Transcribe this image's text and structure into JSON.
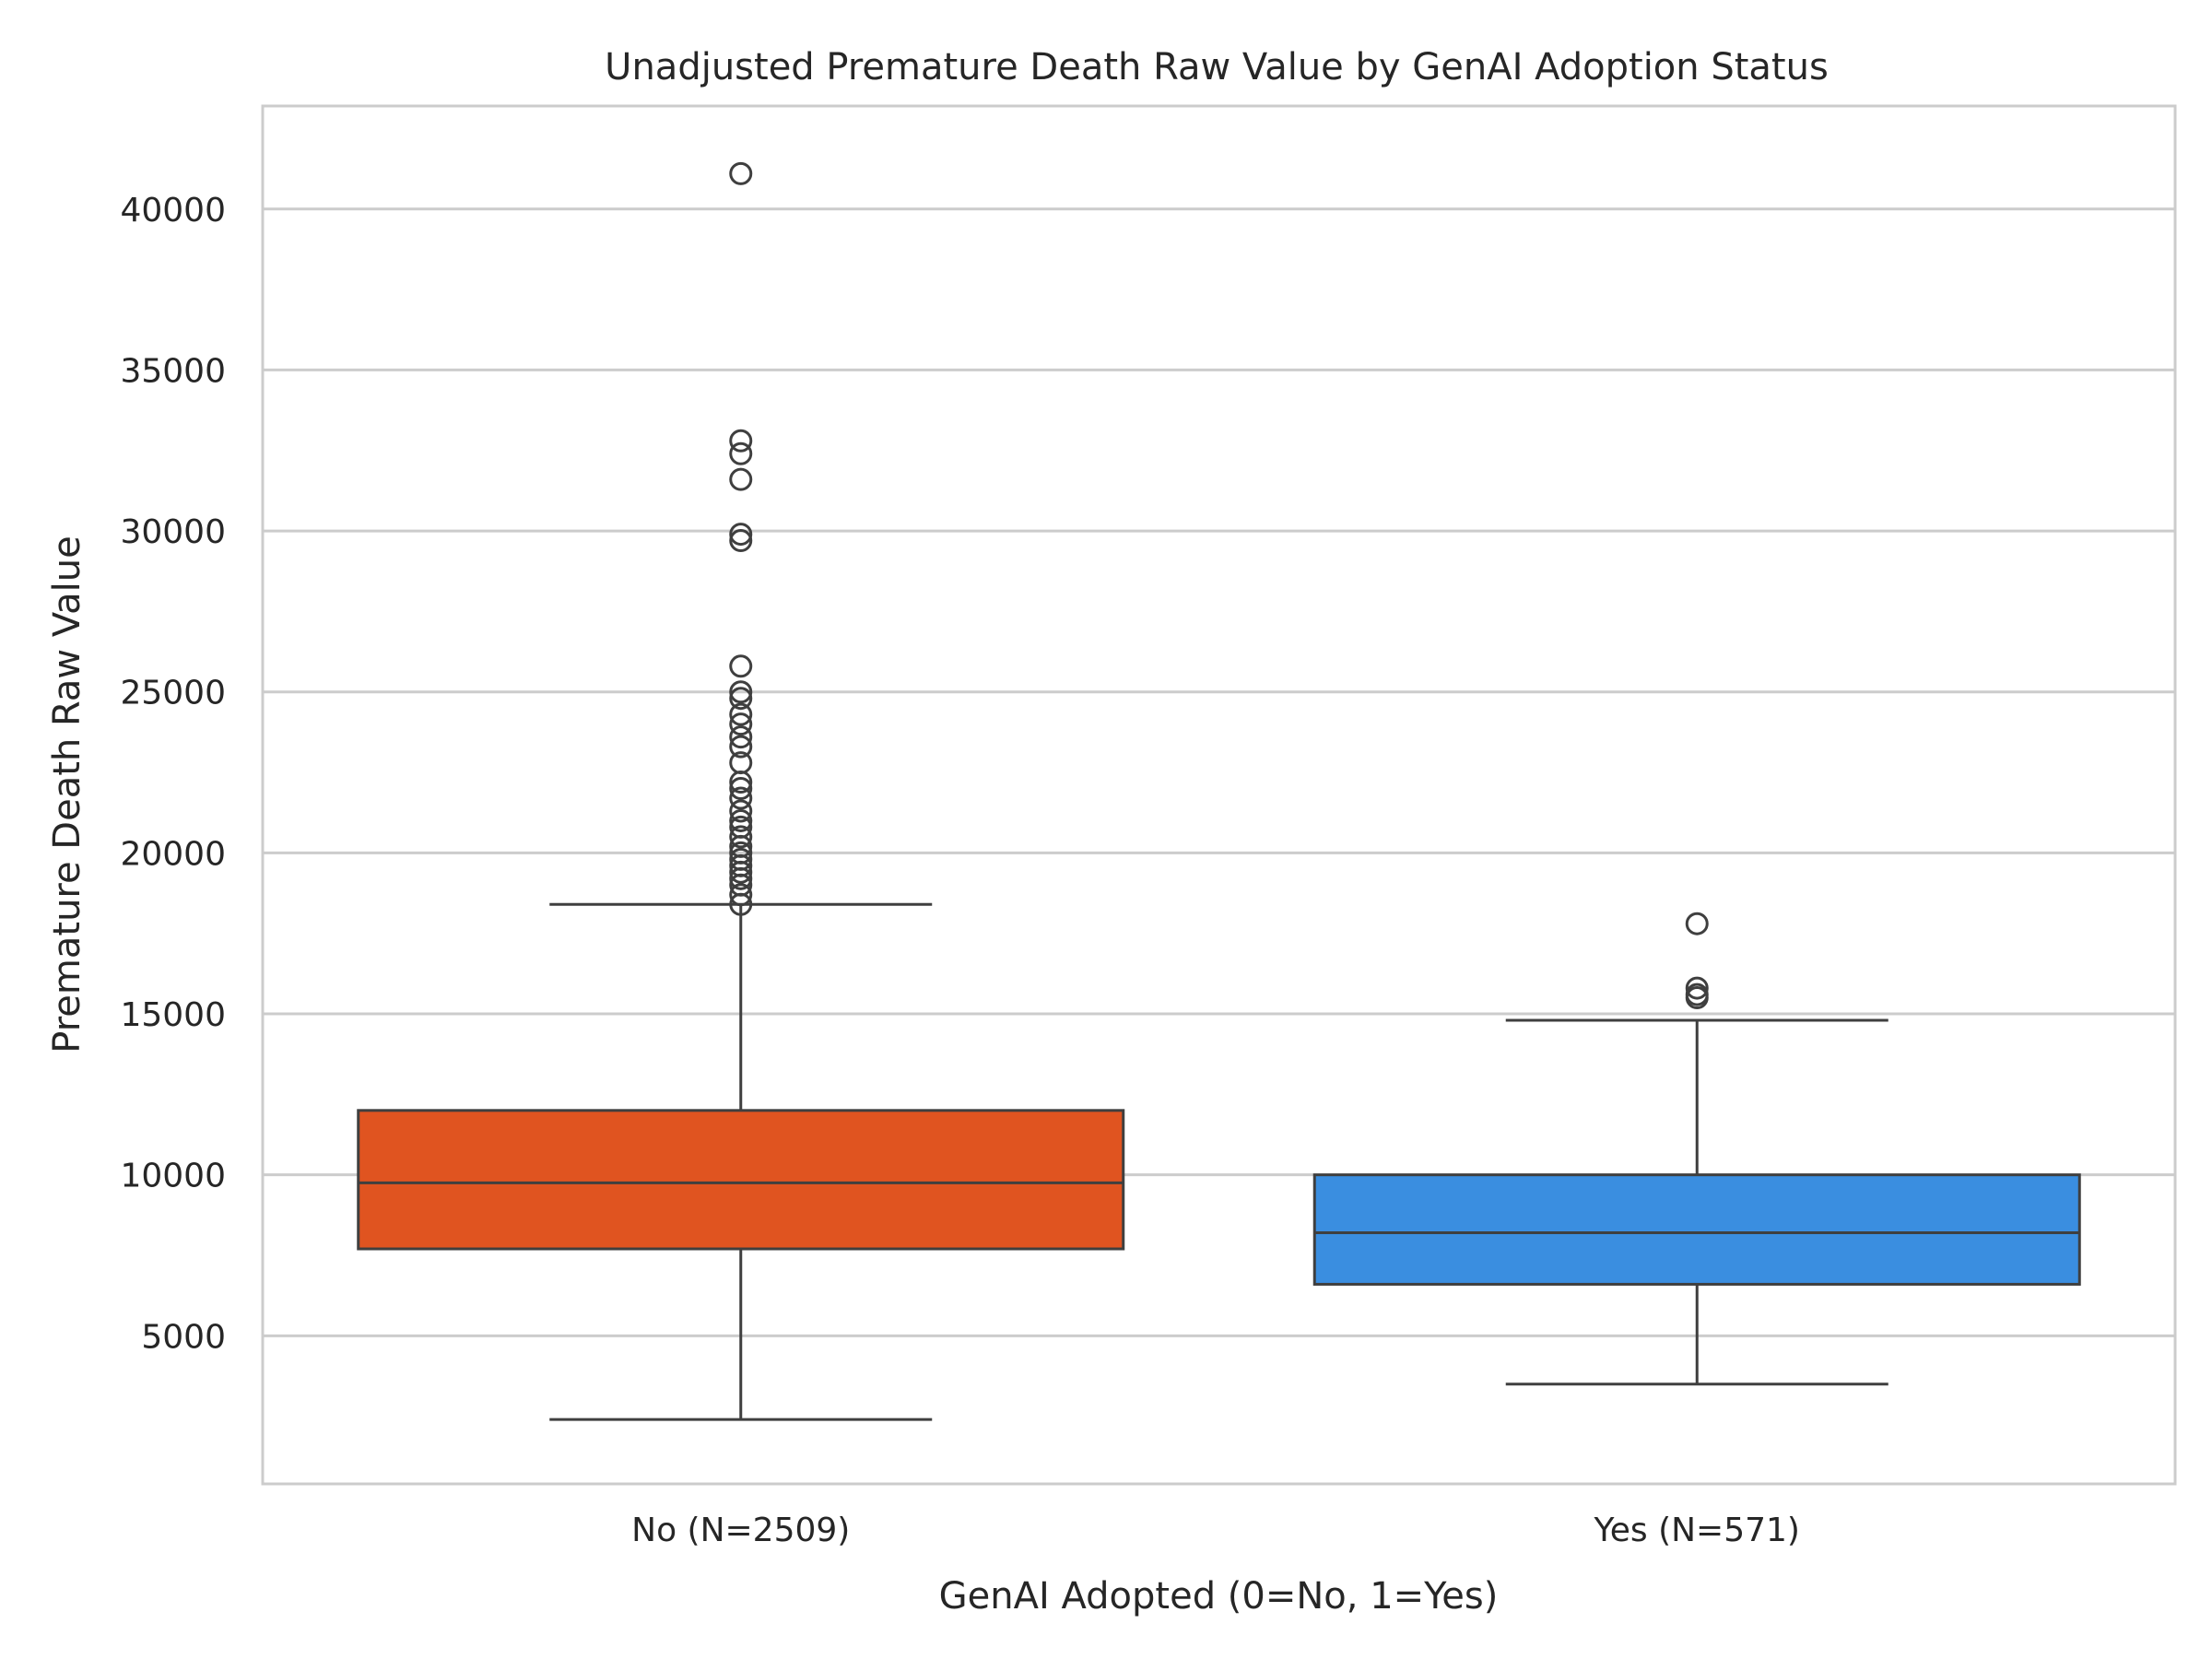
{
  "chart_data": {
    "type": "box",
    "title": "Unadjusted Premature Death Raw Value by GenAI Adoption Status",
    "xlabel": "GenAI Adopted (0=No, 1=Yes)",
    "ylabel": "Premature Death Raw Value",
    "ylim": [
      400,
      43200
    ],
    "yticks": [
      5000,
      10000,
      15000,
      20000,
      25000,
      30000,
      35000,
      40000
    ],
    "grid": true,
    "categories": [
      "No (N=2509)",
      "Yes (N=571)"
    ],
    "boxes": [
      {
        "category": "No (N=2509)",
        "color": "#e05420",
        "whisker_low": 2400,
        "q1": 7700,
        "median": 9750,
        "q3": 12000,
        "whisker_high": 18400,
        "outliers": [
          18400,
          18700,
          19000,
          19200,
          19400,
          19600,
          19800,
          20000,
          20200,
          20500,
          20800,
          21000,
          21300,
          21700,
          22000,
          22200,
          22800,
          23300,
          23600,
          24000,
          24300,
          24800,
          25000,
          25800,
          29700,
          29900,
          31600,
          32400,
          32800,
          41100
        ]
      },
      {
        "category": "Yes (N=571)",
        "color": "#3a8ee0",
        "whisker_low": 3500,
        "q1": 6600,
        "median": 8200,
        "q3": 10000,
        "whisker_high": 14800,
        "outliers": [
          15500,
          15600,
          15800,
          17800
        ]
      }
    ]
  }
}
